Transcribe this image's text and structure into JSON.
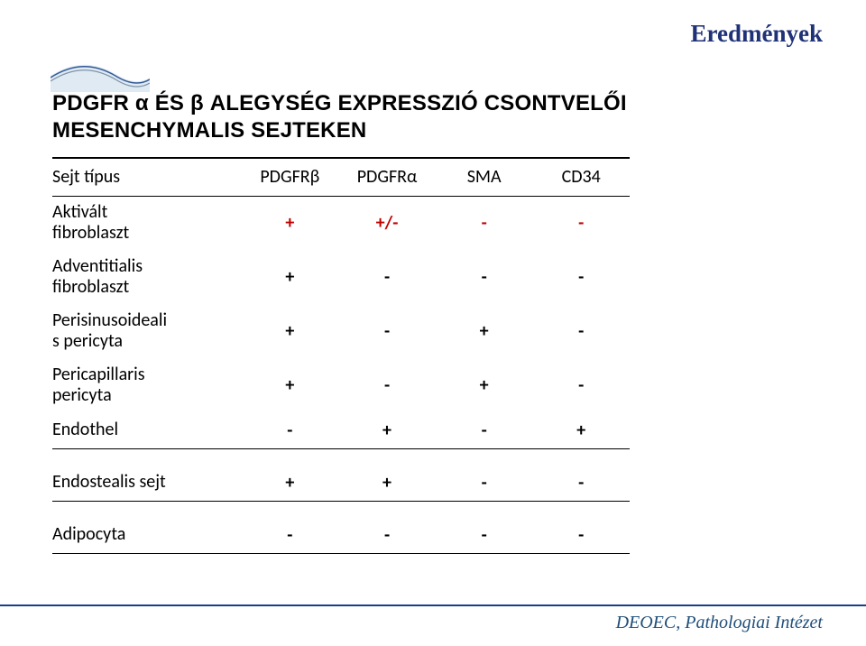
{
  "header": {
    "section_title": "Eredmények"
  },
  "title": {
    "line1": "PDGFR α ÉS β ALEGYSÉG EXPRESSZIÓ CSONTVELŐI",
    "line2": "MESENCHYMALIS SEJTEKEN"
  },
  "table": {
    "columns": [
      "Sejt típus",
      "PDGFRβ",
      "PDGFRα",
      "SMA",
      "CD34"
    ],
    "rows": [
      {
        "label": "Aktivált\nfibroblaszt",
        "v": [
          "+",
          "+/-",
          "-",
          "-"
        ],
        "highlight": true
      },
      {
        "label": "Adventitialis\nfibroblaszt",
        "v": [
          "+",
          "-",
          "-",
          "-"
        ]
      },
      {
        "label": "Perisinusoideali\ns pericyta",
        "v": [
          "+",
          "-",
          "+",
          "-"
        ]
      },
      {
        "label": "Pericapillaris\npericyta",
        "v": [
          "+",
          "-",
          "+",
          "-"
        ]
      },
      {
        "label": "Endothel",
        "v": [
          "-",
          "+",
          "-",
          "+"
        ],
        "dense": true,
        "sep": true
      },
      {
        "label": "Endostealis sejt",
        "v": [
          "+",
          "+",
          "-",
          "-"
        ],
        "dense": true,
        "sep": true
      },
      {
        "label": "Adipocyta",
        "v": [
          "-",
          "-",
          "-",
          "-"
        ],
        "dense": true,
        "sep": true
      }
    ],
    "colors": {
      "highlight_text": "#c00000",
      "rule": "#000000"
    }
  },
  "footer": {
    "text": "DEOEC, Pathologiai Intézet"
  },
  "decor": {
    "stroke1": "#7d93a8",
    "stroke2": "#325a9a",
    "fill": "#dbe6f0"
  }
}
